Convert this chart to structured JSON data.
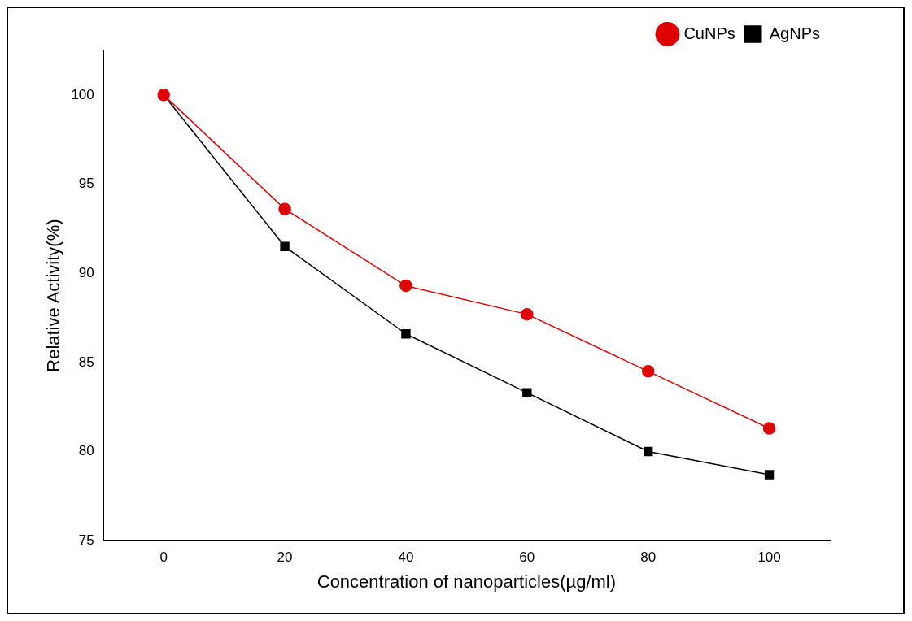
{
  "chart_data": {
    "type": "line",
    "xlabel": "Concentration of nanoparticles(µg/ml)",
    "ylabel": "Relative Activity(%)",
    "x": [
      0,
      20,
      40,
      60,
      80,
      100
    ],
    "series": [
      {
        "name": "AgNPs",
        "color": "#000000",
        "marker": "square",
        "values": [
          100,
          91.5,
          86.6,
          83.3,
          80.0,
          78.7
        ]
      },
      {
        "name": "CuNPs",
        "color": "#e00000",
        "marker": "circle",
        "values": [
          100,
          93.6,
          89.3,
          87.7,
          84.5,
          81.3
        ]
      }
    ],
    "xlim": [
      -10,
      110
    ],
    "xticks": [
      0,
      20,
      40,
      60,
      80,
      100
    ],
    "ylim": [
      75,
      102.5
    ],
    "yticks": [
      75,
      80,
      85,
      90,
      95,
      100
    ],
    "grid": false,
    "legend": "top right",
    "line_style": "solid"
  }
}
